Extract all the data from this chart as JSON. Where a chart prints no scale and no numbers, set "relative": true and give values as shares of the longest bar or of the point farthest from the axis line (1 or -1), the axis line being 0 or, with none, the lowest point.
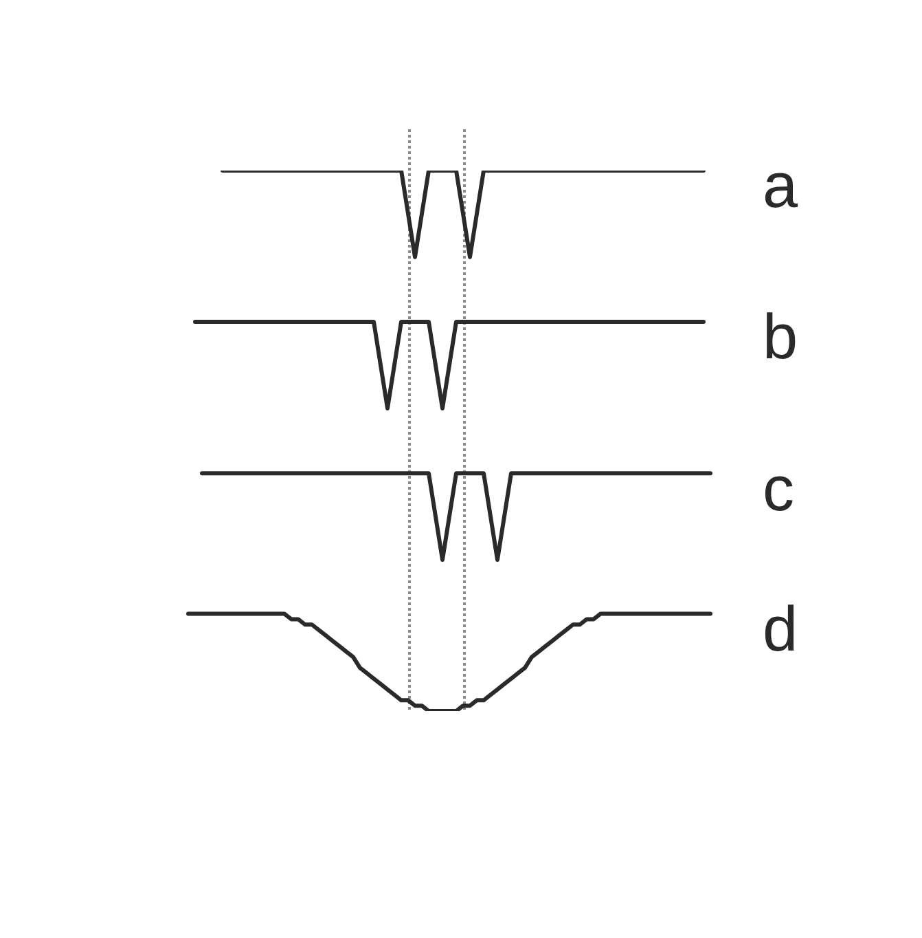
{
  "chart_data": {
    "type": "line",
    "relative": true,
    "legend": false,
    "marker": "none",
    "line_style": "solid",
    "categories": [
      null,
      null,
      null,
      null,
      null,
      null,
      null,
      null,
      null,
      null,
      null,
      null,
      null,
      null,
      null,
      null,
      null,
      null,
      null,
      null,
      null,
      null,
      null,
      null,
      null,
      null,
      null,
      null,
      null,
      null,
      null,
      null,
      null,
      null,
      null,
      null,
      null,
      null,
      null,
      null,
      null,
      null,
      null,
      null,
      null,
      null,
      null,
      null,
      null,
      null,
      null,
      null,
      null,
      null,
      null,
      null,
      null,
      null,
      null,
      null,
      null,
      null,
      null,
      null,
      null,
      null,
      null,
      null,
      null,
      null,
      null,
      null,
      null,
      null,
      null,
      null,
      null
    ],
    "series": [
      {
        "name": "a",
        "color": "#2a2a2a",
        "values": [
          null,
          null,
          null,
          null,
          null,
          1,
          1,
          1,
          1,
          1,
          1,
          1,
          1,
          1,
          1,
          1,
          1,
          1,
          1,
          1,
          1,
          1,
          1,
          1,
          1,
          1,
          1,
          1,
          1,
          1,
          1,
          1,
          0.92,
          0.84,
          0.92,
          1,
          1,
          1,
          1,
          1,
          0.92,
          0.84,
          0.92,
          1,
          1,
          1,
          1,
          1,
          1,
          1,
          1,
          1,
          1,
          1,
          1,
          1,
          1,
          1,
          1,
          1,
          1,
          1,
          1,
          1,
          1,
          1,
          1,
          1,
          1,
          1,
          1,
          1,
          1,
          1,
          1,
          1,
          null
        ]
      },
      {
        "name": "b",
        "color": "#2a2a2a",
        "values": [
          null,
          0.72,
          0.72,
          0.72,
          0.72,
          0.72,
          0.72,
          0.72,
          0.72,
          0.72,
          0.72,
          0.72,
          0.72,
          0.72,
          0.72,
          0.72,
          0.72,
          0.72,
          0.72,
          0.72,
          0.72,
          0.72,
          0.72,
          0.72,
          0.72,
          0.72,
          0.72,
          0.72,
          0.64,
          0.56,
          0.64,
          0.72,
          0.72,
          0.72,
          0.72,
          0.72,
          0.64,
          0.56,
          0.64,
          0.72,
          0.72,
          0.72,
          0.72,
          0.72,
          0.72,
          0.72,
          0.72,
          0.72,
          0.72,
          0.72,
          0.72,
          0.72,
          0.72,
          0.72,
          0.72,
          0.72,
          0.72,
          0.72,
          0.72,
          0.72,
          0.72,
          0.72,
          0.72,
          0.72,
          0.72,
          0.72,
          0.72,
          0.72,
          0.72,
          0.72,
          0.72,
          0.72,
          0.72,
          0.72,
          0.72,
          0.72,
          null
        ]
      },
      {
        "name": "c",
        "color": "#2a2a2a",
        "values": [
          null,
          null,
          0.44,
          0.44,
          0.44,
          0.44,
          0.44,
          0.44,
          0.44,
          0.44,
          0.44,
          0.44,
          0.44,
          0.44,
          0.44,
          0.44,
          0.44,
          0.44,
          0.44,
          0.44,
          0.44,
          0.44,
          0.44,
          0.44,
          0.44,
          0.44,
          0.44,
          0.44,
          0.44,
          0.44,
          0.44,
          0.44,
          0.44,
          0.44,
          0.44,
          0.44,
          0.36,
          0.28,
          0.36,
          0.44,
          0.44,
          0.44,
          0.44,
          0.44,
          0.36,
          0.28,
          0.36,
          0.44,
          0.44,
          0.44,
          0.44,
          0.44,
          0.44,
          0.44,
          0.44,
          0.44,
          0.44,
          0.44,
          0.44,
          0.44,
          0.44,
          0.44,
          0.44,
          0.44,
          0.44,
          0.44,
          0.44,
          0.44,
          0.44,
          0.44,
          0.44,
          0.44,
          0.44,
          0.44,
          0.44,
          0.44,
          0.44
        ]
      },
      {
        "name": "d",
        "color": "#2a2a2a",
        "values": [
          0.18,
          0.18,
          0.18,
          0.18,
          0.18,
          0.18,
          0.18,
          0.18,
          0.18,
          0.18,
          0.18,
          0.18,
          0.18,
          0.18,
          0.18,
          0.17,
          0.17,
          0.16,
          0.16,
          0.15,
          0.14,
          0.13,
          0.12,
          0.11,
          0.1,
          0.08,
          0.07,
          0.06,
          0.05,
          0.04,
          0.03,
          0.02,
          0.02,
          0.01,
          0.01,
          0,
          0,
          0,
          0,
          0,
          0.01,
          0.01,
          0.02,
          0.02,
          0.03,
          0.04,
          0.05,
          0.06,
          0.07,
          0.08,
          0.1,
          0.11,
          0.12,
          0.13,
          0.14,
          0.15,
          0.16,
          0.16,
          0.17,
          0.17,
          0.18,
          0.18,
          0.18,
          0.18,
          0.18,
          0.18,
          0.18,
          0.18,
          0.18,
          0.18,
          0.18,
          0.18,
          0.18,
          0.18,
          0.18,
          0.18,
          0.18
        ]
      }
    ]
  }
}
